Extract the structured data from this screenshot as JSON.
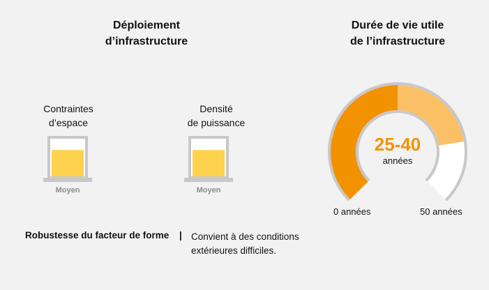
{
  "left_panel": {
    "title": "Déploiement\nd’infrastructure",
    "gauges": [
      {
        "label": "Contraintes\nd’espace",
        "level_label": "Moyen",
        "fill_fraction": 0.7
      },
      {
        "label": "Densité\nde puissance",
        "level_label": "Moyen",
        "fill_fraction": 0.7
      }
    ],
    "robustness": {
      "label": "Robustesse du facteur de forme",
      "separator": "|",
      "description": "Convient à des conditions extérieures difficiles."
    }
  },
  "right_panel": {
    "title": "Durée de vie utile\nde l’infrastructure",
    "range_text": "25-40",
    "range_unit": "années",
    "scale_min": 0,
    "scale_max": 50,
    "range_start": 25,
    "range_end": 40,
    "min_label": "0 années",
    "max_label": "50 années"
  },
  "colors": {
    "orange": "#f39200",
    "light_orange": "#fbbf66",
    "yellow": "#ffd24d",
    "gray": "#c8c8c8",
    "background": "#f2f2f2"
  }
}
